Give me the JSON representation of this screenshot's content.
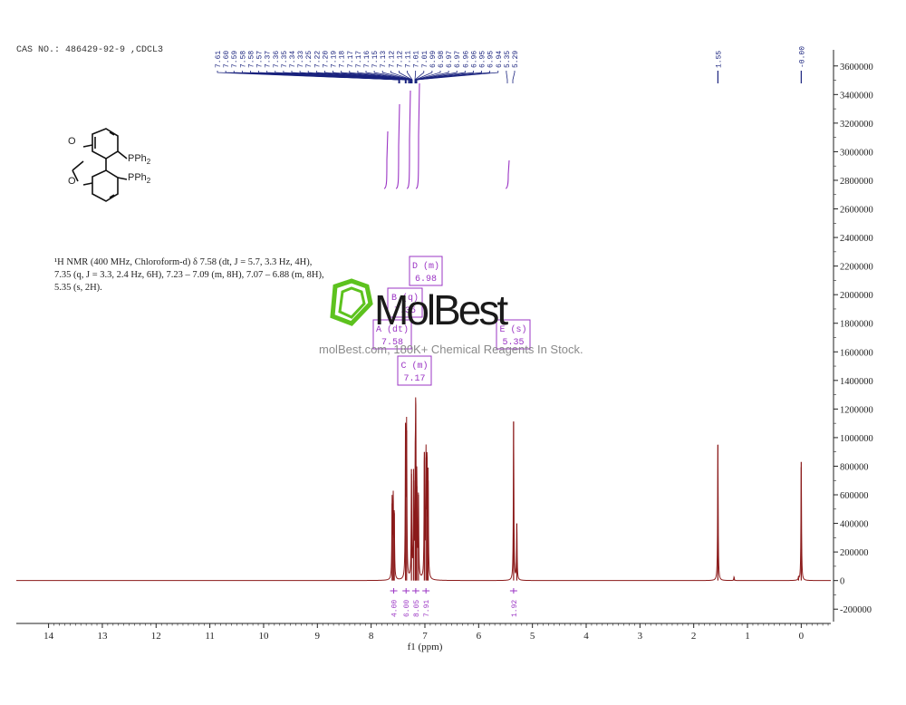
{
  "header": {
    "cas_label": "CAS NO.: 486429-92-9 ,CDCL3"
  },
  "molecule": {
    "atom_o1": "O",
    "atom_o2": "O",
    "pph2_1": "PPh",
    "pph2_2": "PPh",
    "sub": "2"
  },
  "nmr": {
    "line1": "¹H NMR (400 MHz, Chloroform-d) δ 7.58 (dt, J = 5.7, 3.3 Hz, 4H),",
    "line2": "7.35 (q, J = 3.3, 2.4 Hz, 6H), 7.23 – 7.09 (m, 8H), 7.07 – 6.88 (m, 8H),",
    "line3": "5.35 (s, 2H)."
  },
  "watermark": {
    "brand": "MolBest",
    "tagline": "molBest.com, 180K+ Chemical Reagents In Stock.",
    "colors": {
      "logo_green": "#5dc21e",
      "text": "#1a1a1a"
    }
  },
  "peak_labels": {
    "cluster": [
      "7.61",
      "7.60",
      "7.59",
      "7.58",
      "7.58",
      "7.57",
      "7.37",
      "7.36",
      "7.35",
      "7.34",
      "7.33",
      "7.25",
      "7.22",
      "7.20",
      "7.19",
      "7.18",
      "7.17",
      "7.17",
      "7.16",
      "7.15",
      "7.13",
      "7.12",
      "7.12",
      "7.11",
      "7.01",
      "7.01",
      "6.99",
      "6.98",
      "6.97",
      "6.97",
      "6.96",
      "6.96",
      "6.95",
      "6.95",
      "6.94",
      "5.35",
      "5.29"
    ],
    "isolated": [
      {
        "label": "1.55",
        "ppm": 1.55
      },
      {
        "label": "-0.00",
        "ppm": 0.0
      }
    ]
  },
  "multiplets": [
    {
      "letter": "D (m)",
      "shift": "6.98"
    },
    {
      "letter": "B (q)",
      "shift": "7.35"
    },
    {
      "letter": "A (dt)",
      "shift": "7.58"
    },
    {
      "letter": "C (m)",
      "shift": "7.17"
    },
    {
      "letter": "E (s)",
      "shift": "5.35"
    }
  ],
  "integrals": [
    {
      "label": "4.00",
      "ppm": 7.58
    },
    {
      "label": "6.00",
      "ppm": 7.35
    },
    {
      "label": "8.05",
      "ppm": 7.17
    },
    {
      "label": "7.91",
      "ppm": 6.98
    },
    {
      "label": "1.92",
      "ppm": 5.35
    }
  ],
  "chart_data": {
    "type": "line",
    "title": "",
    "xlabel": "f1 (ppm)",
    "ylabel": "",
    "x_reversed": true,
    "xlim": [
      14.6,
      -0.55
    ],
    "ylim": [
      -300000,
      3700000
    ],
    "x_ticks": [
      14,
      13,
      12,
      11,
      10,
      9,
      8,
      7,
      6,
      5,
      4,
      3,
      2,
      1,
      0
    ],
    "y_ticks": [
      -200000,
      0,
      200000,
      400000,
      600000,
      800000,
      1000000,
      1200000,
      1400000,
      1600000,
      1800000,
      2000000,
      2200000,
      2400000,
      2600000,
      2800000,
      3000000,
      3200000,
      3400000,
      3600000
    ],
    "y_tick_labels": [
      "-200000",
      "0",
      "200000",
      "400000",
      "600000",
      "800000",
      "1000000",
      "1200000",
      "1400000",
      "1600000",
      "1800000",
      "2000000",
      "2200000",
      "2400000",
      "2600000",
      "2800000",
      "3000000",
      "3200000",
      "3400000",
      "3600000"
    ],
    "peaks": [
      {
        "ppm": 7.61,
        "height": 540000
      },
      {
        "ppm": 7.59,
        "height": 560000
      },
      {
        "ppm": 7.57,
        "height": 470000
      },
      {
        "ppm": 7.36,
        "height": 1100000
      },
      {
        "ppm": 7.34,
        "height": 1050000
      },
      {
        "ppm": 7.25,
        "height": 780000
      },
      {
        "ppm": 7.21,
        "height": 700000
      },
      {
        "ppm": 7.18,
        "height": 640000
      },
      {
        "ppm": 7.17,
        "height": 1100000
      },
      {
        "ppm": 7.15,
        "height": 660000
      },
      {
        "ppm": 7.12,
        "height": 600000
      },
      {
        "ppm": 7.01,
        "height": 900000
      },
      {
        "ppm": 6.98,
        "height": 860000
      },
      {
        "ppm": 6.96,
        "height": 820000
      },
      {
        "ppm": 6.94,
        "height": 700000
      },
      {
        "ppm": 5.35,
        "height": 1110000
      },
      {
        "ppm": 5.29,
        "height": 400000
      },
      {
        "ppm": 1.55,
        "height": 950000
      },
      {
        "ppm": 1.25,
        "height": 25000
      },
      {
        "ppm": 0.0,
        "height": 830000
      },
      {
        "ppm": 0.05,
        "height": 20000
      }
    ],
    "colors": {
      "spectrum": "#8b1a1a",
      "integral": "#9b35c4",
      "axis": "#222222",
      "peaklabel": "#1a237e"
    }
  }
}
